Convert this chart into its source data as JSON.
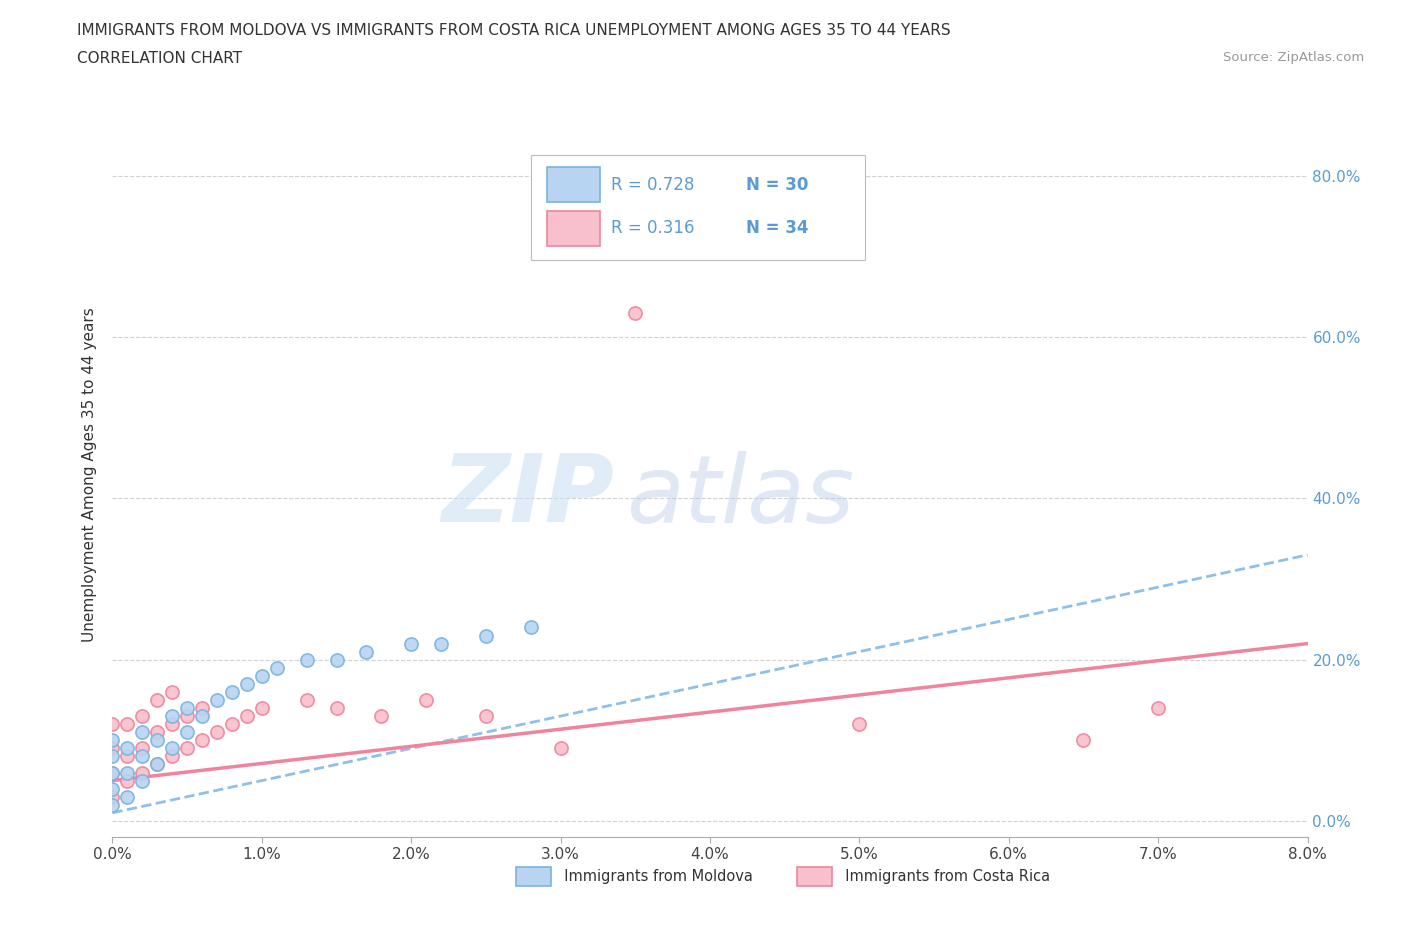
{
  "title_line1": "IMMIGRANTS FROM MOLDOVA VS IMMIGRANTS FROM COSTA RICA UNEMPLOYMENT AMONG AGES 35 TO 44 YEARS",
  "title_line2": "CORRELATION CHART",
  "source_text": "Source: ZipAtlas.com",
  "ylabel_label": "Unemployment Among Ages 35 to 44 years",
  "xlim": [
    0.0,
    0.08
  ],
  "ylim": [
    -0.02,
    0.88
  ],
  "moldova_color": "#7ab3e0",
  "moldova_color_fill": "#b8d4f0",
  "costa_rica_color": "#f0849c",
  "costa_rica_color_fill": "#f8c0cc",
  "trend_moldova_color": "#90c0e8",
  "trend_costa_rica_color": "#f0849c",
  "legend_R_moldova": "0.728",
  "legend_N_moldova": "30",
  "legend_R_costa_rica": "0.316",
  "legend_N_costa_rica": "34",
  "watermark_zip": "ZIP",
  "watermark_atlas": "atlas",
  "grid_color": "#cccccc",
  "background_color": "#ffffff",
  "moldova_x": [
    0.0,
    0.0,
    0.0,
    0.0,
    0.0,
    0.001,
    0.001,
    0.001,
    0.002,
    0.002,
    0.002,
    0.003,
    0.003,
    0.004,
    0.004,
    0.005,
    0.005,
    0.006,
    0.007,
    0.008,
    0.009,
    0.01,
    0.011,
    0.013,
    0.015,
    0.017,
    0.02,
    0.022,
    0.025,
    0.028
  ],
  "moldova_y": [
    0.02,
    0.04,
    0.06,
    0.08,
    0.1,
    0.03,
    0.06,
    0.09,
    0.05,
    0.08,
    0.11,
    0.07,
    0.1,
    0.09,
    0.13,
    0.11,
    0.14,
    0.13,
    0.15,
    0.16,
    0.17,
    0.18,
    0.19,
    0.2,
    0.2,
    0.21,
    0.22,
    0.22,
    0.23,
    0.24
  ],
  "costa_rica_x": [
    0.0,
    0.0,
    0.0,
    0.0,
    0.001,
    0.001,
    0.001,
    0.002,
    0.002,
    0.002,
    0.003,
    0.003,
    0.003,
    0.004,
    0.004,
    0.004,
    0.005,
    0.005,
    0.006,
    0.006,
    0.007,
    0.008,
    0.009,
    0.01,
    0.013,
    0.015,
    0.018,
    0.021,
    0.025,
    0.03,
    0.035,
    0.05,
    0.065,
    0.07
  ],
  "costa_rica_y": [
    0.03,
    0.06,
    0.09,
    0.12,
    0.05,
    0.08,
    0.12,
    0.06,
    0.09,
    0.13,
    0.07,
    0.11,
    0.15,
    0.08,
    0.12,
    0.16,
    0.09,
    0.13,
    0.1,
    0.14,
    0.11,
    0.12,
    0.13,
    0.14,
    0.15,
    0.14,
    0.13,
    0.15,
    0.13,
    0.09,
    0.63,
    0.12,
    0.1,
    0.14
  ]
}
